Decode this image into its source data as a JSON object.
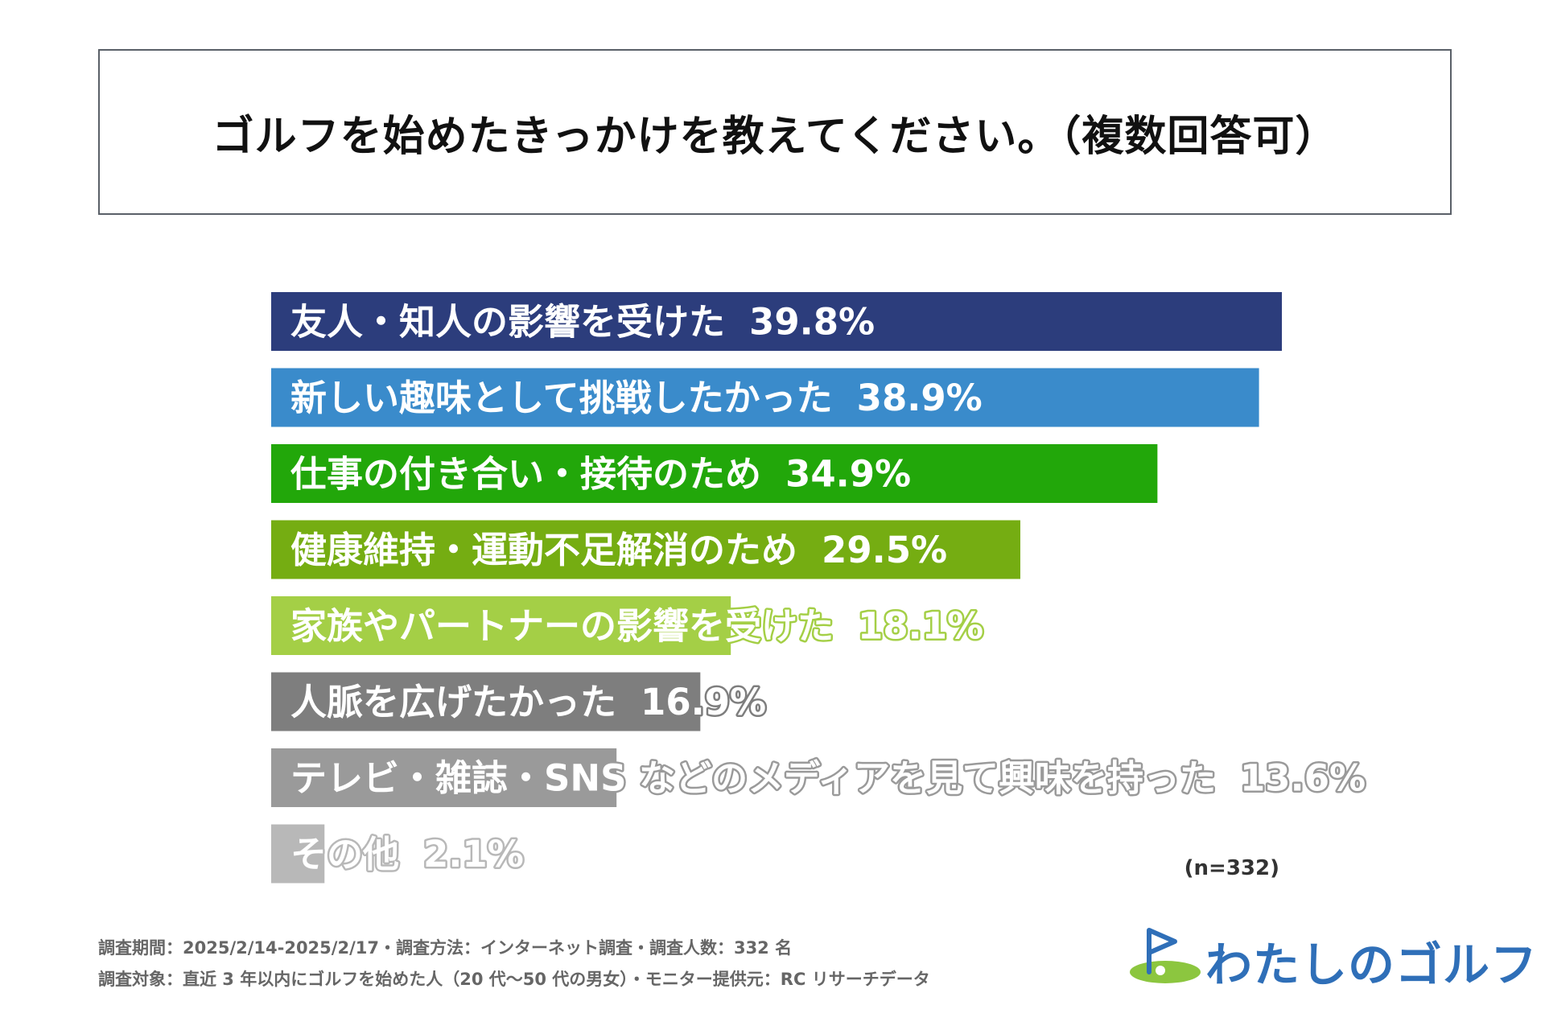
{
  "header": {
    "title": "ゴルフを始めたきっかけを教えてください。（複数回答可）"
  },
  "chart_data": {
    "type": "bar",
    "orientation": "horizontal",
    "title": "ゴルフを始めたきっかけを教えてください。（複数回答可）",
    "unit": "%",
    "xlim": [
      0,
      40
    ],
    "categories": [
      "友人・知人の影響を受けた",
      "新しい趣味として挑戦したかった",
      "仕事の付き合い・接待のため",
      "健康維持・運動不足解消のため",
      "家族やパートナーの影響を受けた",
      "人脈を広げたかった",
      "テレビ・雑誌・SNS などのメディアを見て興味を持った",
      "その他"
    ],
    "values": [
      39.8,
      38.9,
      34.9,
      29.5,
      18.1,
      16.9,
      13.6,
      2.1
    ],
    "value_labels": [
      "39.8%",
      "38.9%",
      "34.9%",
      "29.5%",
      "18.1%",
      "16.9%",
      "13.6%",
      "2.1%"
    ],
    "colors": [
      "#2c3d7c",
      "#3a8bcb",
      "#22a70a",
      "#75ad12",
      "#a4cf46",
      "#7e7e7e",
      "#9a9a9a",
      "#b8b8b8"
    ],
    "sample_note": "(n=332)"
  },
  "footer": {
    "line1": "調査期間：2025/2/14-2025/2/17・調査方法：インターネット調査・調査人数：332 名",
    "line2": "調査対象：直近 3 年以内にゴルフを始めた人（20 代〜50 代の男女）・モニター提供元：RC リサーチデータ"
  },
  "logo": {
    "text": "わたしのゴルフ",
    "color": "#2f6fb8",
    "accent": "#8cc63f"
  }
}
